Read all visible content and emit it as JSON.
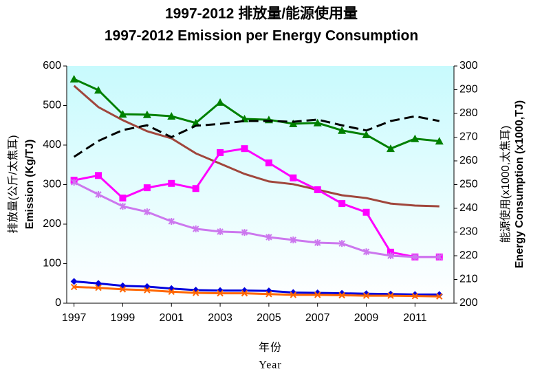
{
  "chart_data": {
    "type": "line",
    "title": [
      "1997-2012 排放量/能源使用量",
      "1997-2012 Emission per Energy Consumption"
    ],
    "y_label": [
      "排放量(公斤/太焦耳)",
      "Emission (Kg/TJ)"
    ],
    "y2_label": [
      "能源使用(x1000,太焦耳)",
      "Energy Consumption (x1000,TJ)"
    ],
    "x_label": [
      "年份",
      "Year"
    ],
    "x": [
      1997,
      1998,
      1999,
      2000,
      2001,
      2002,
      2003,
      2004,
      2005,
      2006,
      2007,
      2008,
      2009,
      2010,
      2011,
      2012
    ],
    "xlim": [
      1996.7,
      2012.6
    ],
    "xticks": [
      1997,
      1999,
      2001,
      2003,
      2005,
      2007,
      2009,
      2011
    ],
    "ylim": [
      0,
      600
    ],
    "yticks": [
      0,
      100,
      200,
      300,
      400,
      500,
      600
    ],
    "y2lim": [
      200,
      300
    ],
    "y2ticks": [
      200,
      210,
      220,
      230,
      240,
      250,
      260,
      270,
      280,
      290,
      300
    ],
    "series": [
      {
        "color": "#008000",
        "marker": "triangle",
        "values": [
          567,
          539,
          478,
          477,
          473,
          456,
          508,
          466,
          464,
          454,
          456,
          437,
          426,
          391,
          416,
          410
        ]
      },
      {
        "color": "#a0463c",
        "marker": "none",
        "values": [
          550,
          496,
          463,
          435,
          417,
          379,
          353,
          327,
          308,
          301,
          287,
          273,
          266,
          252,
          247,
          245
        ]
      },
      {
        "color": "#ff00ff",
        "marker": "square",
        "values": [
          311,
          323,
          266,
          292,
          303,
          290,
          381,
          391,
          355,
          317,
          287,
          252,
          230,
          129,
          117,
          117
        ]
      },
      {
        "color": "#cc77ee",
        "marker": "asterisk",
        "values": [
          306,
          275,
          245,
          231,
          207,
          188,
          181,
          179,
          167,
          160,
          153,
          151,
          130,
          120,
          117,
          117
        ]
      },
      {
        "color": "#0000dd",
        "marker": "diamond",
        "values": [
          55,
          50,
          44,
          42,
          37,
          33,
          32,
          32,
          31,
          27,
          26,
          25,
          24,
          23,
          22,
          22
        ]
      },
      {
        "color": "#ff6600",
        "marker": "x",
        "values": [
          41,
          39,
          35,
          33,
          29,
          26,
          25,
          25,
          23,
          21,
          21,
          20,
          19,
          19,
          18,
          17
        ]
      },
      {
        "color": "#000000",
        "marker": "none",
        "dashed": true,
        "axis": "y2",
        "values": [
          261.7,
          268.4,
          273,
          275,
          270,
          274.8,
          275.6,
          276.8,
          276.8,
          276.5,
          277.4,
          275,
          272.8,
          276.8,
          278.8,
          276.8
        ]
      }
    ]
  }
}
